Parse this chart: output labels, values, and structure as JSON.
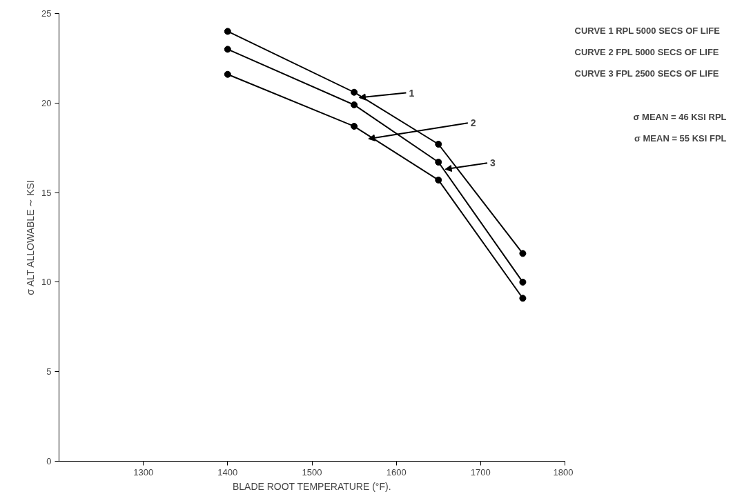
{
  "chart_data": {
    "type": "line",
    "xlabel": "BLADE ROOT TEMPERATURE (°F).",
    "ylabel": "σ ALT ALLOWABLE ∼ KSI",
    "x": [
      1400,
      1550,
      1650,
      1750
    ],
    "series": [
      {
        "color": "#000000",
        "values": [
          24.0,
          20.6,
          17.7,
          11.6
        ]
      },
      {
        "color": "#000000",
        "values": [
          23.0,
          19.9,
          16.7,
          10.0
        ]
      },
      {
        "color": "#000000",
        "values": [
          21.6,
          18.7,
          15.7,
          9.1
        ]
      }
    ],
    "xlim": [
      1200,
      1800
    ],
    "xticks": [
      1300,
      1400,
      1500,
      1600,
      1700,
      1800
    ],
    "ylim": [
      0,
      25
    ],
    "yticks": [
      0,
      5,
      10,
      15,
      20,
      25
    ],
    "grid": false,
    "marker": "circle",
    "line_style": "solid",
    "annotations": [
      {
        "text": "1",
        "x": 1556,
        "y": 20.3
      },
      {
        "text": "2",
        "x": 1567,
        "y": 18.0
      },
      {
        "text": "3",
        "x": 1658,
        "y": 16.3
      },
      "CURVE 1  RPL 5000 SECS OF LIFE",
      "CURVE 2 FPL 5000 SECS OF LIFE",
      "CURVE 3 FPL 2500 SECS OF LIFE",
      "σ MEAN = 46 KSI RPL",
      "σ MEAN = 55 KSI FPL"
    ]
  }
}
